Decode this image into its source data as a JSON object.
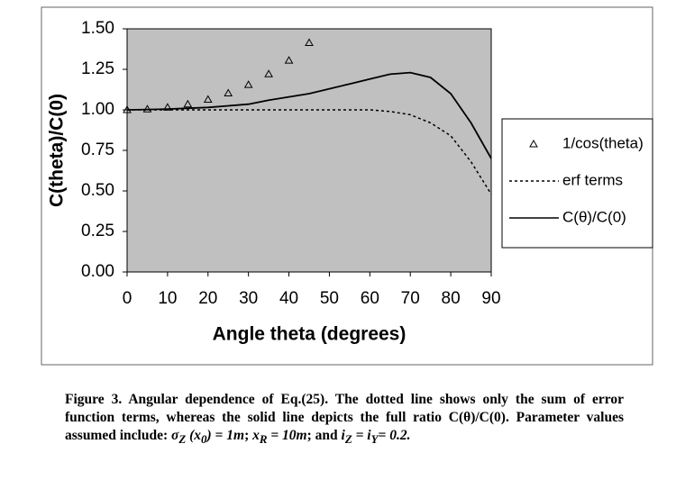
{
  "chart_data": {
    "type": "line",
    "x_label": "Angle theta (degrees)",
    "y_label": "C(theta)/C(0)",
    "x": [
      0,
      5,
      10,
      15,
      20,
      25,
      30,
      35,
      40,
      45,
      50,
      55,
      60,
      65,
      70,
      75,
      80,
      85,
      90
    ],
    "series": [
      {
        "name": "1/cos(theta)",
        "color": "#000000",
        "style": "markers",
        "values": [
          1.0,
          1.004,
          1.015,
          1.035,
          1.064,
          1.103,
          1.155,
          1.221,
          1.305,
          1.414,
          null,
          null,
          null,
          null,
          null,
          null,
          null,
          null,
          null
        ]
      },
      {
        "name": "erf terms",
        "color": "#000000",
        "style": "dotted",
        "values": [
          1.0,
          1.0,
          1.0,
          1.0,
          1.0,
          1.0,
          1.0,
          1.0,
          1.0,
          1.0,
          1.0,
          1.0,
          1.0,
          0.99,
          0.97,
          0.92,
          0.84,
          0.68,
          0.48
        ]
      },
      {
        "name": "C(θ)/C(0)",
        "color": "#000000",
        "style": "solid",
        "values": [
          1.0,
          1.002,
          1.005,
          1.01,
          1.015,
          1.025,
          1.035,
          1.06,
          1.08,
          1.1,
          1.13,
          1.16,
          1.19,
          1.22,
          1.23,
          1.2,
          1.1,
          0.92,
          0.7
        ]
      }
    ],
    "xlim": [
      0,
      90
    ],
    "xticks": [
      0,
      10,
      20,
      30,
      40,
      50,
      60,
      70,
      80,
      90
    ],
    "ylim": [
      0,
      1.5
    ],
    "yticks": [
      {
        "value": 0,
        "label": "0.00"
      },
      {
        "value": 0.25,
        "label": "0.25"
      },
      {
        "value": 0.5,
        "label": "0.50"
      },
      {
        "value": 0.75,
        "label": "0.75"
      },
      {
        "value": 1.0,
        "label": "1.00"
      },
      {
        "value": 1.25,
        "label": "1.25"
      },
      {
        "value": 1.5,
        "label": "1.50"
      }
    ],
    "plot_background": "#c0c0c0",
    "legend": "right"
  },
  "caption": [
    "Figure 3.  Angular dependence of Eq.(25).  The dotted line shows only the sum of error function terms, whereas the solid line depicts the full ratio C(θ)/C(0).  Parameter values assumed include: ",
    "σ",
    "Z",
    " (x",
    "0",
    ") = 1m",
    "; ",
    "x",
    "R",
    " = 10m",
    "; and ",
    "i",
    "Z",
    " = i",
    "Y",
    "= 0.2."
  ]
}
